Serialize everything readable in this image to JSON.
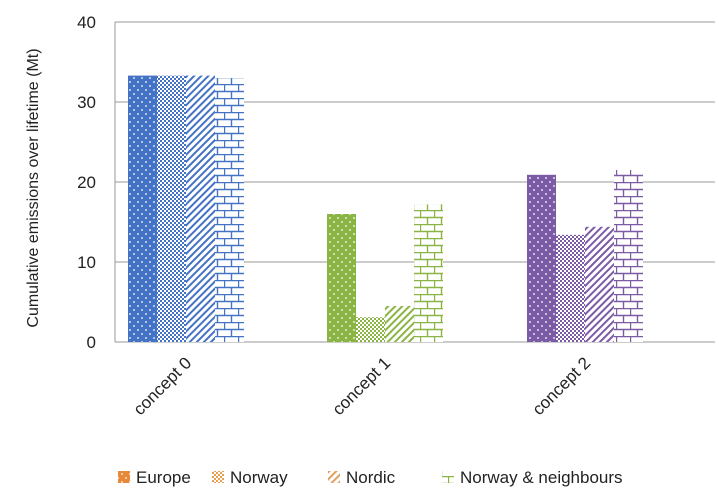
{
  "chart_data": {
    "type": "bar",
    "categories": [
      "concept 0",
      "concept 1",
      "concept 2"
    ],
    "series": [
      {
        "name": "Europe",
        "values": [
          33.3,
          16.0,
          20.9
        ]
      },
      {
        "name": "Norway",
        "values": [
          33.3,
          3.1,
          13.4
        ]
      },
      {
        "name": "Nordic",
        "values": [
          33.3,
          4.5,
          14.4
        ]
      },
      {
        "name": "Norway & neighbours",
        "values": [
          33.0,
          17.2,
          21.5
        ]
      }
    ],
    "category_colors": [
      "#4472C4",
      "#8AB443",
      "#7B5AA6"
    ],
    "series_patterns": [
      "dots",
      "crosshatch",
      "diagonal",
      "brick"
    ],
    "ylabel": "Cumulative emissions over lifetime (Mt)",
    "ylim": [
      0,
      40
    ],
    "yticks": [
      0,
      10,
      20,
      30,
      40
    ],
    "grid": true,
    "legend_position": "bottom"
  }
}
